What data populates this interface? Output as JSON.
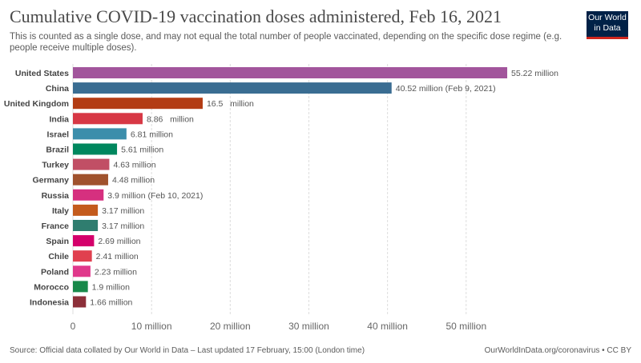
{
  "header": {
    "title": "Cumulative COVID-19 vaccination doses administered, Feb 16, 2021",
    "subtitle": "This is counted as a single dose, and may not equal the total number of people vaccinated, depending on the specific dose regime (e.g. people receive multiple doses).",
    "logo_line1": "Our World",
    "logo_line2": "in Data",
    "logo_color": "#002147",
    "logo_accent": "#ce261e"
  },
  "footer": {
    "source": "Source: Official data collated by Our World in Data – Last updated 17 February, 15:00 (London time)",
    "credit": "OurWorldInData.org/coronavirus • CC BY"
  },
  "chart_data": {
    "type": "bar",
    "orientation": "horizontal",
    "xlim": [
      0,
      57
    ],
    "grid": true,
    "x_ticks": [
      {
        "value": 0,
        "label": "0"
      },
      {
        "value": 10,
        "label": "10 million"
      },
      {
        "value": 20,
        "label": "20 million"
      },
      {
        "value": 30,
        "label": "30 million"
      },
      {
        "value": 40,
        "label": "40 million"
      },
      {
        "value": 50,
        "label": "50 million"
      }
    ],
    "bars": [
      {
        "category": "United States",
        "value": 55.22,
        "label": "55.22 million",
        "color": "#a2559c"
      },
      {
        "category": "China",
        "value": 40.52,
        "label": "40.52 million (Feb 9, 2021)",
        "color": "#3a6d92"
      },
      {
        "category": "United Kingdom",
        "value": 16.5,
        "label": "16.5   million",
        "color": "#b33c14"
      },
      {
        "category": "India",
        "value": 8.86,
        "label": "8.86   million",
        "color": "#d73845"
      },
      {
        "category": "Israel",
        "value": 6.81,
        "label": "6.81 million",
        "color": "#3c8eab"
      },
      {
        "category": "Brazil",
        "value": 5.61,
        "label": "5.61 million",
        "color": "#00875e"
      },
      {
        "category": "Turkey",
        "value": 4.63,
        "label": "4.63 million",
        "color": "#c14f65"
      },
      {
        "category": "Germany",
        "value": 4.48,
        "label": "4.48 million",
        "color": "#a0522d"
      },
      {
        "category": "Russia",
        "value": 3.9,
        "label": "3.9 million (Feb 10, 2021)",
        "color": "#d6307f"
      },
      {
        "category": "Italy",
        "value": 3.17,
        "label": "3.17 million",
        "color": "#c45b1c"
      },
      {
        "category": "France",
        "value": 3.17,
        "label": "3.17 million",
        "color": "#2f7d6f"
      },
      {
        "category": "Spain",
        "value": 2.69,
        "label": "2.69 million",
        "color": "#d4006b"
      },
      {
        "category": "Chile",
        "value": 2.41,
        "label": "2.41 million",
        "color": "#e0404f"
      },
      {
        "category": "Poland",
        "value": 2.23,
        "label": "2.23 million",
        "color": "#e0388b"
      },
      {
        "category": "Morocco",
        "value": 1.9,
        "label": "1.9 million",
        "color": "#18894a"
      },
      {
        "category": "Indonesia",
        "value": 1.66,
        "label": "1.66 million",
        "color": "#8c2f39"
      }
    ]
  }
}
